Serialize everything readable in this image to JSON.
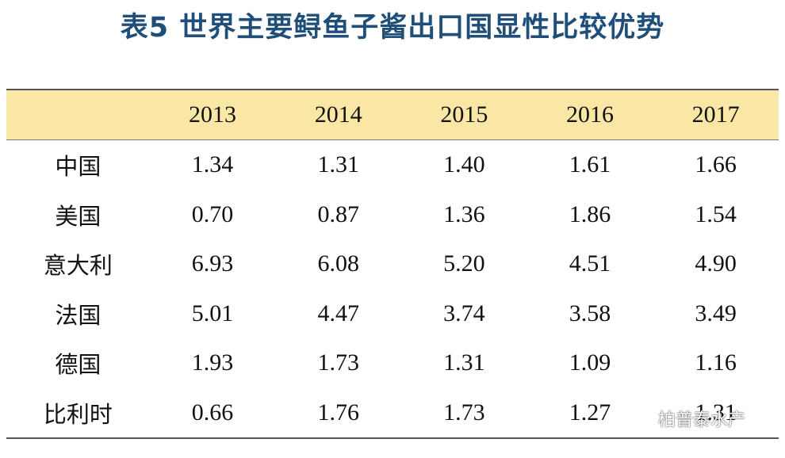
{
  "title": "表5  世界主要鲟鱼子酱出口国显性比较优势",
  "table": {
    "corner": "",
    "years": [
      "2013",
      "2014",
      "2015",
      "2016",
      "2017"
    ],
    "rows": [
      {
        "country": "中国",
        "values": [
          "1.34",
          "1.31",
          "1.40",
          "1.61",
          "1.66"
        ]
      },
      {
        "country": "美国",
        "values": [
          "0.70",
          "0.87",
          "1.36",
          "1.86",
          "1.54"
        ]
      },
      {
        "country": "意大利",
        "values": [
          "6.93",
          "6.08",
          "5.20",
          "4.51",
          "4.90"
        ]
      },
      {
        "country": "法国",
        "values": [
          "5.01",
          "4.47",
          "3.74",
          "3.58",
          "3.49"
        ]
      },
      {
        "country": "德国",
        "values": [
          "1.93",
          "1.73",
          "1.31",
          "1.09",
          "1.16"
        ]
      },
      {
        "country": "比利时",
        "values": [
          "0.66",
          "1.76",
          "1.73",
          "1.27",
          "1.31"
        ]
      }
    ]
  },
  "watermark": {
    "icon": "wechat-icon",
    "text": "柏普泰水产"
  },
  "colors": {
    "title": "#1f4e79",
    "header_bg": "#fbe7a5"
  }
}
